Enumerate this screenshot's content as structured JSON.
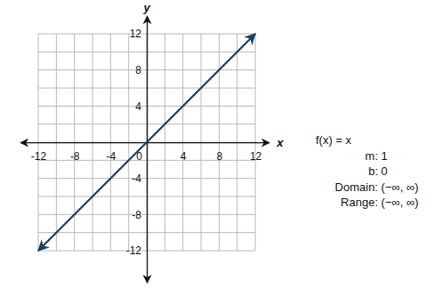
{
  "chart_data": {
    "type": "line",
    "x": [
      -12,
      12
    ],
    "values": [
      -12,
      12
    ],
    "color": "#1d3f5e",
    "xlim": [
      -14,
      13.5
    ],
    "ylim": [
      -15.5,
      14
    ],
    "xticks": [
      -12,
      -8,
      -4,
      0,
      4,
      8,
      12
    ],
    "yticks": [
      -12,
      -8,
      -4,
      4,
      8,
      12
    ],
    "xlabel": "x",
    "ylabel": "y",
    "grid": true,
    "annotations": [
      "f(x) = x",
      "m: 1",
      "b: 0",
      "Domain: (−∞, ∞)",
      "Range: (−∞, ∞)"
    ]
  }
}
